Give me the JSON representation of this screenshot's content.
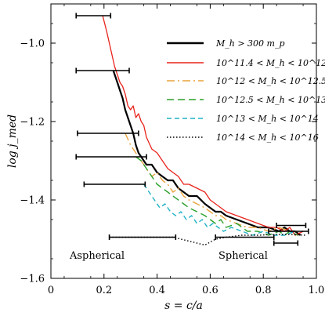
{
  "chart_data": {
    "type": "line",
    "xlabel": "s = c/a",
    "ylabel": "log j_med",
    "xlim": [
      0.0,
      1.0
    ],
    "ylim": [
      -1.6,
      -0.9
    ],
    "x_ticks": [
      "0",
      "0.2",
      "0.4",
      "0.6",
      "0.8",
      "1.0"
    ],
    "y_ticks": [
      "−1.0",
      "−1.2",
      "−1.4",
      "−1.6"
    ],
    "grid": false,
    "legend_position": "top-right",
    "annotations": [
      "Aspherical",
      "Spherical"
    ],
    "series": [
      {
        "name": "M_h > 300 m_p",
        "color": "#000000",
        "dash": "",
        "width": 2.2,
        "x": [
          0.235,
          0.25,
          0.26,
          0.27,
          0.28,
          0.29,
          0.3,
          0.31,
          0.32,
          0.33,
          0.34,
          0.35,
          0.36,
          0.38,
          0.4,
          0.42,
          0.44,
          0.46,
          0.48,
          0.5,
          0.52,
          0.55,
          0.58,
          0.6,
          0.62,
          0.64,
          0.66,
          0.7,
          0.74,
          0.78,
          0.82,
          0.86,
          0.88,
          0.9,
          0.92,
          0.94
        ],
        "y": [
          -1.07,
          -1.1,
          -1.12,
          -1.14,
          -1.17,
          -1.19,
          -1.21,
          -1.23,
          -1.26,
          -1.28,
          -1.29,
          -1.3,
          -1.31,
          -1.31,
          -1.33,
          -1.34,
          -1.35,
          -1.35,
          -1.37,
          -1.38,
          -1.39,
          -1.39,
          -1.41,
          -1.42,
          -1.43,
          -1.43,
          -1.44,
          -1.45,
          -1.46,
          -1.47,
          -1.47,
          -1.48,
          -1.47,
          -1.48,
          -1.48,
          -1.49
        ]
      },
      {
        "name": "10^11.4 < M_h < 10^12",
        "color": "#e8231c",
        "dash": "",
        "width": 1.3,
        "x": [
          0.195,
          0.21,
          0.22,
          0.23,
          0.24,
          0.25,
          0.26,
          0.27,
          0.28,
          0.29,
          0.3,
          0.31,
          0.32,
          0.33,
          0.34,
          0.35,
          0.36,
          0.38,
          0.4,
          0.42,
          0.44,
          0.46,
          0.48,
          0.5,
          0.52,
          0.55,
          0.58,
          0.6,
          0.62,
          0.64,
          0.66,
          0.7,
          0.74,
          0.78,
          0.82,
          0.85,
          0.88,
          0.9,
          0.92,
          0.95
        ],
        "y": [
          -0.93,
          -0.97,
          -1.0,
          -1.03,
          -1.06,
          -1.08,
          -1.1,
          -1.11,
          -1.13,
          -1.16,
          -1.17,
          -1.16,
          -1.19,
          -1.18,
          -1.2,
          -1.21,
          -1.24,
          -1.27,
          -1.28,
          -1.3,
          -1.32,
          -1.33,
          -1.34,
          -1.36,
          -1.36,
          -1.37,
          -1.38,
          -1.4,
          -1.41,
          -1.42,
          -1.43,
          -1.44,
          -1.45,
          -1.46,
          -1.47,
          -1.47,
          -1.48,
          -1.47,
          -1.49,
          -1.48
        ]
      },
      {
        "name": "10^12 < M_h < 10^12.5",
        "color": "#e8a23c",
        "dash": "10,4,2,4",
        "width": 1.4,
        "x": [
          0.28,
          0.3,
          0.32,
          0.34,
          0.36,
          0.38,
          0.4,
          0.42,
          0.44,
          0.46,
          0.48,
          0.5,
          0.52,
          0.55,
          0.58,
          0.6,
          0.62,
          0.64,
          0.66,
          0.7,
          0.74,
          0.78,
          0.82,
          0.86,
          0.9,
          0.93
        ],
        "y": [
          -1.23,
          -1.26,
          -1.28,
          -1.3,
          -1.32,
          -1.34,
          -1.33,
          -1.35,
          -1.36,
          -1.38,
          -1.37,
          -1.39,
          -1.4,
          -1.41,
          -1.42,
          -1.43,
          -1.44,
          -1.44,
          -1.45,
          -1.46,
          -1.47,
          -1.47,
          -1.48,
          -1.47,
          -1.48,
          -1.48
        ]
      },
      {
        "name": "10^12.5 < M_h < 10^13",
        "color": "#2ca02c",
        "dash": "9,5",
        "width": 1.4,
        "x": [
          0.32,
          0.34,
          0.36,
          0.38,
          0.4,
          0.42,
          0.44,
          0.46,
          0.48,
          0.5,
          0.52,
          0.55,
          0.58,
          0.6,
          0.62,
          0.64,
          0.66,
          0.7,
          0.74,
          0.78,
          0.82,
          0.86,
          0.88,
          0.9,
          0.93
        ],
        "y": [
          -1.29,
          -1.3,
          -1.32,
          -1.34,
          -1.36,
          -1.37,
          -1.38,
          -1.39,
          -1.4,
          -1.41,
          -1.42,
          -1.43,
          -1.44,
          -1.45,
          -1.46,
          -1.45,
          -1.47,
          -1.46,
          -1.48,
          -1.48,
          -1.49,
          -1.48,
          -1.49,
          -1.48,
          -1.49
        ]
      },
      {
        "name": "10^13 < M_h < 10^14",
        "color": "#1fb2c6",
        "dash": "6,4",
        "width": 1.4,
        "x": [
          0.35,
          0.37,
          0.39,
          0.41,
          0.43,
          0.45,
          0.47,
          0.49,
          0.51,
          0.53,
          0.55,
          0.57,
          0.59,
          0.61,
          0.63,
          0.65,
          0.68,
          0.72,
          0.76,
          0.8,
          0.84,
          0.88,
          0.92
        ],
        "y": [
          -1.36,
          -1.38,
          -1.4,
          -1.42,
          -1.41,
          -1.43,
          -1.44,
          -1.43,
          -1.45,
          -1.44,
          -1.46,
          -1.45,
          -1.47,
          -1.46,
          -1.47,
          -1.48,
          -1.47,
          -1.48,
          -1.49,
          -1.48,
          -1.49,
          -1.49,
          -1.48
        ]
      },
      {
        "name": "10^14 < M_h < 10^16",
        "color": "#000000",
        "dash": "1.5,2.5",
        "width": 1.4,
        "x": [
          0.22,
          0.3,
          0.38,
          0.46,
          0.52,
          0.58,
          0.62,
          0.66,
          0.72,
          0.78,
          0.84,
          0.9,
          0.96
        ],
        "y": [
          -1.495,
          -1.495,
          -1.495,
          -1.495,
          -1.505,
          -1.515,
          -1.5,
          -1.495,
          -1.49,
          -1.49,
          -1.488,
          -1.488,
          -1.49
        ]
      }
    ],
    "error_bars": [
      {
        "y": -0.93,
        "xmin": 0.095,
        "xmax": 0.225
      },
      {
        "y": -1.07,
        "xmin": 0.095,
        "xmax": 0.295
      },
      {
        "y": -1.23,
        "xmin": 0.1,
        "xmax": 0.33
      },
      {
        "y": -1.29,
        "xmin": 0.095,
        "xmax": 0.36
      },
      {
        "y": -1.36,
        "xmin": 0.125,
        "xmax": 0.355
      },
      {
        "y": -1.495,
        "xmin": 0.22,
        "xmax": 0.47
      },
      {
        "y": -1.495,
        "xmin": 0.62,
        "xmax": 0.84
      },
      {
        "y": -1.465,
        "xmin": 0.85,
        "xmax": 0.96
      },
      {
        "y": -1.48,
        "xmin": 0.82,
        "xmax": 0.97
      },
      {
        "y": -1.51,
        "xmin": 0.84,
        "xmax": 0.93
      }
    ]
  }
}
